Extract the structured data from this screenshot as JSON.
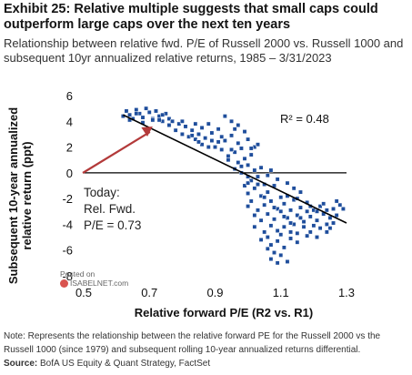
{
  "header": {
    "title": "Exhibit 25: Relative multiple suggests that small caps could outperform large caps over the next ten years",
    "subtitle": "Relationship between relative fwd. P/E of Russell 2000 vs. Russell 1000 and subsequent 10yr annualized relative returns, 1985 – 3/31/2023"
  },
  "footer": {
    "note": "Note: Represents the relationship between the relative forward PE for the Russell 2000 vs the Russell 1000 (since 1979) and subsequent rolling 10-year annualized returns differential.",
    "source_label": "Source:",
    "source_text": " BofA US Equity & Quant Strategy, FactSet"
  },
  "watermark": {
    "line1": "Posted on",
    "line2": "ISABELNET.com"
  },
  "colors": {
    "points": "#1f4e9c",
    "trend": "#000000",
    "arrow": "#b33a3a",
    "axis": "#000000"
  },
  "chart_data": {
    "type": "scatter",
    "xlabel": "Relative forward P/E (R2 vs. R1)",
    "ylabel": "Subsequent 10-year annualized relative return (ppt)",
    "xlim": [
      0.5,
      1.3
    ],
    "ylim": [
      -8,
      6
    ],
    "x_ticks": [
      "0.5",
      "0.7",
      "0.9",
      "1.1",
      "1.3"
    ],
    "y_ticks": [
      "6",
      "4",
      "2",
      "0",
      "-2",
      "-4",
      "-6",
      "-8"
    ],
    "r2_label": "R² = 0.48",
    "annotation": {
      "lines": [
        "Today:",
        "Rel. Fwd.",
        "P/E = 0.73"
      ],
      "x": 0.73
    },
    "trendline": {
      "x1": 0.62,
      "y1": 4.5,
      "x2": 1.3,
      "y2": -3.9
    },
    "points": [
      [
        0.62,
        4.4
      ],
      [
        0.63,
        4.8
      ],
      [
        0.64,
        4.5
      ],
      [
        0.65,
        4.2
      ],
      [
        0.66,
        4.9
      ],
      [
        0.67,
        4.6
      ],
      [
        0.68,
        4.3
      ],
      [
        0.69,
        5.0
      ],
      [
        0.7,
        4.7
      ],
      [
        0.71,
        4.2
      ],
      [
        0.72,
        4.8
      ],
      [
        0.73,
        4.4
      ],
      [
        0.74,
        4.0
      ],
      [
        0.75,
        4.6
      ],
      [
        0.76,
        4.2
      ],
      [
        0.68,
        3.9
      ],
      [
        0.71,
        4.1
      ],
      [
        0.74,
        4.5
      ],
      [
        0.77,
        4.0
      ],
      [
        0.79,
        3.8
      ],
      [
        0.78,
        3.3
      ],
      [
        0.8,
        3.0
      ],
      [
        0.81,
        3.6
      ],
      [
        0.82,
        2.8
      ],
      [
        0.83,
        3.3
      ],
      [
        0.84,
        2.6
      ],
      [
        0.85,
        3.0
      ],
      [
        0.86,
        2.2
      ],
      [
        0.87,
        2.7
      ],
      [
        0.88,
        3.8
      ],
      [
        0.89,
        2.5
      ],
      [
        0.9,
        2.0
      ],
      [
        0.91,
        3.4
      ],
      [
        0.92,
        1.8
      ],
      [
        0.93,
        2.5
      ],
      [
        0.94,
        1.3
      ],
      [
        0.95,
        2.9
      ],
      [
        0.96,
        1.6
      ],
      [
        0.97,
        0.8
      ],
      [
        0.98,
        1.9
      ],
      [
        0.99,
        1.1
      ],
      [
        1.0,
        0.6
      ],
      [
        1.01,
        1.4
      ],
      [
        1.02,
        0.2
      ],
      [
        0.93,
        4.4
      ],
      [
        0.95,
        4.0
      ],
      [
        0.97,
        3.7
      ],
      [
        0.99,
        3.2
      ],
      [
        0.96,
        3.4
      ],
      [
        1.0,
        2.6
      ],
      [
        1.02,
        2.0
      ],
      [
        1.03,
        2.2
      ],
      [
        0.94,
        1.0
      ],
      [
        0.96,
        0.3
      ],
      [
        0.98,
        0.0
      ],
      [
        1.0,
        -0.3
      ],
      [
        1.01,
        -0.6
      ],
      [
        1.03,
        -0.3
      ],
      [
        1.04,
        0.4
      ],
      [
        1.05,
        -0.9
      ],
      [
        1.02,
        -1.2
      ],
      [
        1.0,
        -1.6
      ],
      [
        0.99,
        -1.0
      ],
      [
        1.04,
        -1.8
      ],
      [
        1.05,
        -2.5
      ],
      [
        1.06,
        -1.5
      ],
      [
        1.07,
        -2.2
      ],
      [
        1.08,
        -1.0
      ],
      [
        1.09,
        -2.8
      ],
      [
        1.03,
        -2.9
      ],
      [
        1.01,
        -2.2
      ],
      [
        1.02,
        -3.3
      ],
      [
        1.04,
        -3.7
      ],
      [
        1.06,
        -3.2
      ],
      [
        1.07,
        -4.1
      ],
      [
        1.08,
        -3.6
      ],
      [
        1.09,
        -4.5
      ],
      [
        1.05,
        -4.6
      ],
      [
        1.06,
        -5.0
      ],
      [
        1.07,
        -5.6
      ],
      [
        1.08,
        -6.2
      ],
      [
        1.09,
        -5.3
      ],
      [
        1.1,
        -4.8
      ],
      [
        1.1,
        -6.4
      ],
      [
        1.11,
        -5.8
      ],
      [
        1.12,
        -6.9
      ],
      [
        1.11,
        -4.2
      ],
      [
        1.12,
        -3.5
      ],
      [
        1.13,
        -5.1
      ],
      [
        1.14,
        -4.0
      ],
      [
        1.15,
        -4.7
      ],
      [
        1.1,
        -3.0
      ],
      [
        1.11,
        -2.4
      ],
      [
        1.12,
        -1.8
      ],
      [
        1.13,
        -2.9
      ],
      [
        1.14,
        -2.1
      ],
      [
        1.15,
        -3.3
      ],
      [
        1.16,
        -2.7
      ],
      [
        1.17,
        -3.8
      ],
      [
        1.18,
        -2.3
      ],
      [
        1.19,
        -3.4
      ],
      [
        1.2,
        -2.9
      ],
      [
        1.21,
        -3.7
      ],
      [
        1.22,
        -2.6
      ],
      [
        1.23,
        -3.2
      ],
      [
        1.24,
        -4.0
      ],
      [
        1.25,
        -3.5
      ],
      [
        1.26,
        -2.8
      ],
      [
        1.27,
        -3.3
      ],
      [
        1.28,
        -2.5
      ],
      [
        1.22,
        -4.3
      ],
      [
        1.19,
        -4.6
      ],
      [
        1.17,
        -4.2
      ],
      [
        1.16,
        -1.5
      ],
      [
        1.14,
        -1.2
      ],
      [
        1.12,
        -0.8
      ],
      [
        1.09,
        -0.5
      ],
      [
        1.07,
        0.2
      ],
      [
        1.06,
        -0.2
      ],
      [
        1.13,
        -3.9
      ],
      [
        1.15,
        -2.0
      ],
      [
        1.18,
        -3.0
      ],
      [
        1.2,
        -4.1
      ],
      [
        1.24,
        -2.9
      ],
      [
        1.26,
        -3.9
      ],
      [
        1.01,
        1.9
      ],
      [
        0.97,
        2.3
      ],
      [
        0.92,
        2.8
      ],
      [
        0.89,
        3.1
      ],
      [
        0.86,
        3.5
      ],
      [
        0.84,
        3.8
      ],
      [
        0.8,
        4.0
      ],
      [
        1.03,
        -0.9
      ],
      [
        1.05,
        -1.9
      ],
      [
        1.08,
        -2.7
      ],
      [
        1.1,
        -1.9
      ],
      [
        1.11,
        -3.4
      ],
      [
        1.13,
        -4.6
      ],
      [
        1.16,
        -3.5
      ],
      [
        1.19,
        -2.6
      ],
      [
        1.21,
        -3.0
      ],
      [
        1.23,
        -2.4
      ],
      [
        1.25,
        -4.3
      ],
      [
        1.27,
        -2.2
      ],
      [
        1.29,
        -2.8
      ],
      [
        1.0,
        -2.6
      ],
      [
        1.02,
        -4.2
      ],
      [
        1.04,
        -5.2
      ],
      [
        1.07,
        -6.7
      ],
      [
        1.09,
        -7.0
      ],
      [
        1.06,
        -5.9
      ],
      [
        1.15,
        -5.4
      ],
      [
        1.18,
        -4.9
      ],
      [
        1.21,
        -5.0
      ],
      [
        1.24,
        -4.6
      ],
      [
        0.98,
        0.5
      ],
      [
        1.0,
        -0.8
      ],
      [
        0.95,
        1.8
      ],
      [
        0.91,
        2.4
      ],
      [
        0.88,
        2.0
      ],
      [
        0.85,
        2.4
      ],
      [
        0.83,
        2.9
      ],
      [
        0.76,
        3.7
      ],
      [
        0.73,
        4.1
      ],
      [
        0.66,
        4.6
      ],
      [
        0.64,
        4.1
      ]
    ]
  }
}
